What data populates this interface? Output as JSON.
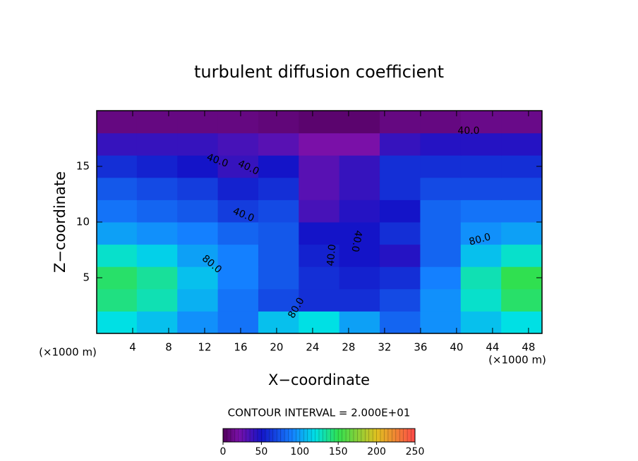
{
  "chart_data": {
    "type": "heatmap",
    "title": "turbulent diffusion coefficient",
    "x_label": "X−coordinate",
    "y_label": "Z−coordinate",
    "x_unit_label": "(×1000 m)",
    "y_unit_label": "(×1000 m)",
    "contour_interval_label": "CONTOUR INTERVAL = 2.000E+01",
    "annotations": [
      "40.0",
      "40.0",
      "40.0",
      "40.0",
      "80.0",
      "80.0",
      "80.0",
      "40.0",
      "40.0"
    ],
    "x": [
      2.25,
      6.75,
      11.25,
      15.75,
      20.25,
      24.75,
      29.25,
      33.75,
      38.25,
      42.75,
      47.25
    ],
    "y": [
      1,
      3,
      5,
      7,
      9,
      11,
      13,
      15,
      17,
      19
    ],
    "z": [
      [
        120,
        110,
        95,
        85,
        110,
        120,
        100,
        80,
        95,
        110,
        120
      ],
      [
        140,
        130,
        105,
        85,
        70,
        60,
        60,
        70,
        95,
        125,
        145
      ],
      [
        145,
        135,
        110,
        90,
        75,
        60,
        55,
        60,
        90,
        130,
        150
      ],
      [
        125,
        115,
        100,
        90,
        75,
        55,
        50,
        45,
        80,
        110,
        125
      ],
      [
        100,
        95,
        90,
        80,
        75,
        50,
        50,
        60,
        80,
        95,
        100
      ],
      [
        85,
        80,
        75,
        65,
        70,
        35,
        45,
        50,
        80,
        85,
        85
      ],
      [
        75,
        70,
        65,
        55,
        60,
        30,
        40,
        60,
        70,
        70,
        70
      ],
      [
        60,
        55,
        50,
        40,
        50,
        30,
        40,
        60,
        60,
        60,
        60
      ],
      [
        40,
        40,
        40,
        35,
        30,
        20,
        20,
        40,
        45,
        45,
        45
      ],
      [
        10,
        10,
        10,
        10,
        8,
        5,
        5,
        10,
        10,
        12,
        12
      ]
    ],
    "xlim": [
      0,
      49.5
    ],
    "ylim": [
      0,
      20
    ],
    "xticks": [
      4,
      8,
      12,
      16,
      20,
      24,
      28,
      32,
      36,
      40,
      44,
      48
    ],
    "yticks": [
      5,
      10,
      15
    ],
    "colorbar": {
      "lim": [
        0,
        250
      ],
      "ticks": [
        0,
        50,
        100,
        150,
        200,
        250
      ],
      "colormap": [
        {
          "value": 0,
          "color": "#50005a"
        },
        {
          "value": 20,
          "color": "#7a10a8"
        },
        {
          "value": 50,
          "color": "#1414c8"
        },
        {
          "value": 90,
          "color": "#1480ff"
        },
        {
          "value": 120,
          "color": "#00e0e4"
        },
        {
          "value": 150,
          "color": "#30e050"
        },
        {
          "value": 200,
          "color": "#e0c020"
        },
        {
          "value": 250,
          "color": "#ff4848"
        }
      ]
    }
  }
}
